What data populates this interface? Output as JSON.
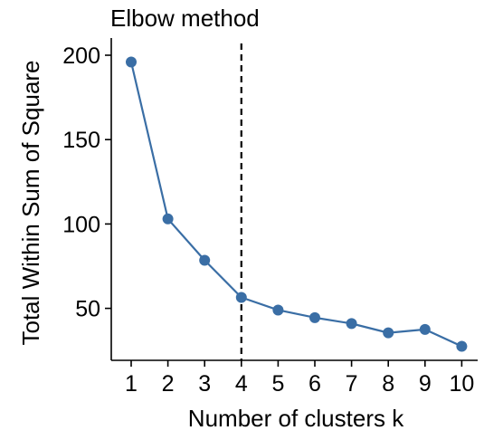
{
  "chart_data": {
    "type": "line",
    "title": "Elbow method",
    "xlabel": "Number of clusters k",
    "ylabel": "Total Within Sum of Square",
    "x": [
      1,
      2,
      3,
      4,
      5,
      6,
      7,
      8,
      9,
      10
    ],
    "x_ticks": [
      "1",
      "2",
      "3",
      "4",
      "5",
      "6",
      "7",
      "8",
      "9",
      "10"
    ],
    "y_ticks": [
      50,
      100,
      150,
      200
    ],
    "y_tick_labels": [
      "50",
      "100",
      "150",
      "200"
    ],
    "series": [
      {
        "values": [
          196,
          103,
          78.5,
          56.5,
          49,
          44.5,
          41,
          35.5,
          37.5,
          27.5
        ]
      }
    ],
    "xlim": [
      0.5,
      10.5
    ],
    "ylim": [
      20,
      204
    ],
    "vline_x": 4,
    "grid": false,
    "colors": {
      "line": "#3a6ea5",
      "point": "#3a6ea5",
      "vline": "#000000"
    }
  }
}
